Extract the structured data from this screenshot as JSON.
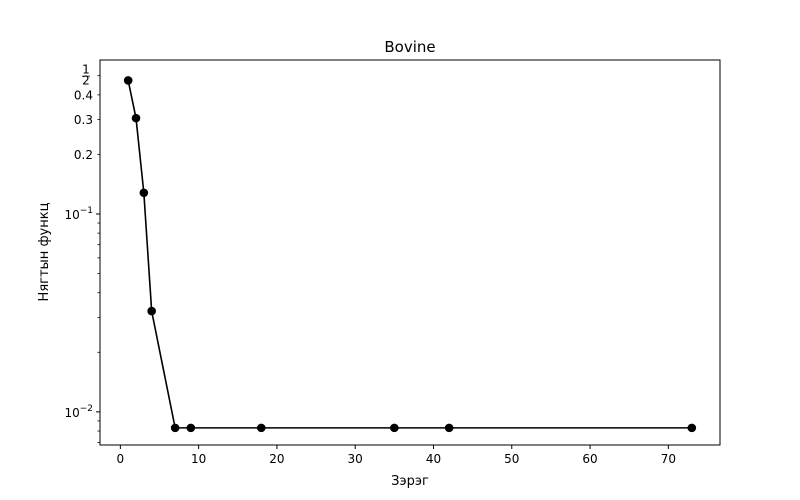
{
  "chart_data": {
    "type": "line",
    "title": "Bovine",
    "xlabel": "Зэрэг",
    "ylabel": "Нягтын функц",
    "xscale": "linear",
    "yscale": "log",
    "xlim": [
      -2.6,
      76.6
    ],
    "ylim": [
      0.0068,
      0.6
    ],
    "grid": false,
    "x_ticks": [
      0,
      10,
      20,
      30,
      40,
      50,
      60,
      70
    ],
    "x_tick_labels": [
      "0",
      "10",
      "20",
      "30",
      "40",
      "50",
      "60",
      "70"
    ],
    "y_ticks": [
      0.01,
      0.1,
      0.2,
      0.3,
      0.4,
      0.5
    ],
    "y_major_tick_labels": [
      {
        "value": 0.01,
        "base": "10",
        "exp": "−2"
      },
      {
        "value": 0.1,
        "base": "10",
        "exp": "−1"
      }
    ],
    "y_minor_tick_labels": [
      "0.2",
      "0.3",
      "0.4"
    ],
    "y_top_label": {
      "value": 0.5,
      "numerator": "1",
      "denominator": "2"
    },
    "series": [
      {
        "color": "#000000",
        "marker": "circle",
        "x": [
          1,
          2,
          3,
          4,
          7,
          9,
          18,
          35,
          42,
          73
        ],
        "y": [
          0.473,
          0.305,
          0.128,
          0.0323,
          0.0083,
          0.0083,
          0.0083,
          0.0083,
          0.0083,
          0.0083
        ]
      }
    ]
  }
}
